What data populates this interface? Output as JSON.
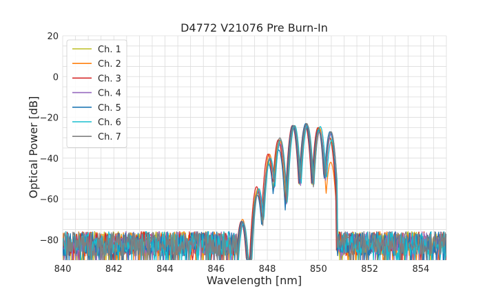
{
  "chart_data": {
    "type": "line",
    "title": "D4772 V21076 Pre Burn-In",
    "xlabel": "Wavelength [nm]",
    "ylabel": "Optical Power [dB]",
    "xlim": [
      840,
      855
    ],
    "ylim": [
      -90,
      20
    ],
    "xticks": [
      840,
      842,
      844,
      846,
      848,
      850,
      852,
      854
    ],
    "yticks": [
      20,
      0,
      -20,
      -40,
      -60,
      -80
    ],
    "xtick_labels": [
      "840",
      "842",
      "844",
      "846",
      "848",
      "850",
      "852",
      "854"
    ],
    "ytick_labels": [
      "20",
      "0",
      "−20",
      "−40",
      "−60",
      "−80"
    ],
    "minor_x_step": 0.5,
    "minor_y_step": 5,
    "grid": true,
    "legend_position": "upper-left",
    "noise_floor": {
      "level": -82,
      "spread": 6,
      "drop_to": -90,
      "left_end": 846.8,
      "right_start": 850.7
    },
    "series": [
      {
        "name": "Ch. 1",
        "color": "#bcbd22",
        "shift": 0.0,
        "lobes": [
          [
            846.55,
            -67
          ],
          [
            847.0,
            -71
          ],
          [
            847.6,
            -56
          ],
          [
            848.05,
            -42
          ],
          [
            848.45,
            -32
          ],
          [
            849.0,
            -24
          ],
          [
            849.5,
            -23.5
          ],
          [
            850.0,
            -25
          ],
          [
            850.45,
            -30
          ]
        ]
      },
      {
        "name": "Ch. 2",
        "color": "#ff7f0e",
        "shift": 0.03,
        "lobes": [
          [
            846.55,
            -66
          ],
          [
            847.0,
            -70
          ],
          [
            847.6,
            -55
          ],
          [
            848.05,
            -38
          ],
          [
            848.45,
            -31
          ],
          [
            849.0,
            -24
          ],
          [
            849.5,
            -23
          ],
          [
            850.0,
            -25
          ],
          [
            850.45,
            -42
          ]
        ]
      },
      {
        "name": "Ch. 3",
        "color": "#d62728",
        "shift": -0.02,
        "lobes": [
          [
            846.55,
            -67
          ],
          [
            847.0,
            -71
          ],
          [
            847.6,
            -54
          ],
          [
            848.05,
            -38
          ],
          [
            848.45,
            -31
          ],
          [
            849.0,
            -24
          ],
          [
            849.5,
            -24
          ],
          [
            850.0,
            -25
          ],
          [
            850.45,
            -30
          ]
        ]
      },
      {
        "name": "Ch. 4",
        "color": "#9467bd",
        "shift": 0.05,
        "lobes": [
          [
            846.55,
            -68
          ],
          [
            847.0,
            -72
          ],
          [
            847.6,
            -56
          ],
          [
            848.05,
            -40
          ],
          [
            848.45,
            -33
          ],
          [
            849.0,
            -25
          ],
          [
            849.5,
            -24
          ],
          [
            850.0,
            -27
          ],
          [
            850.45,
            -28
          ]
        ]
      },
      {
        "name": "Ch. 5",
        "color": "#1f77b4",
        "shift": 0.0,
        "lobes": [
          [
            846.55,
            -67
          ],
          [
            847.0,
            -71
          ],
          [
            847.6,
            -58
          ],
          [
            848.05,
            -43
          ],
          [
            848.45,
            -36
          ],
          [
            849.0,
            -24
          ],
          [
            849.5,
            -23
          ],
          [
            850.0,
            -26
          ],
          [
            850.45,
            -27
          ]
        ]
      },
      {
        "name": "Ch. 6",
        "color": "#17becf",
        "shift": 0.07,
        "lobes": [
          [
            846.55,
            -68
          ],
          [
            847.0,
            -72
          ],
          [
            847.6,
            -55
          ],
          [
            848.05,
            -40
          ],
          [
            848.45,
            -31
          ],
          [
            849.0,
            -24
          ],
          [
            849.5,
            -24
          ],
          [
            850.0,
            -24.5
          ],
          [
            850.45,
            -31
          ]
        ]
      },
      {
        "name": "Ch. 7",
        "color": "#7f7f7f",
        "shift": 0.04,
        "lobes": [
          [
            846.55,
            -67
          ],
          [
            847.0,
            -71
          ],
          [
            847.6,
            -57
          ],
          [
            848.05,
            -40
          ],
          [
            848.45,
            -30
          ],
          [
            849.0,
            -24
          ],
          [
            849.5,
            -23
          ],
          [
            850.0,
            -27
          ],
          [
            850.45,
            -27
          ]
        ]
      }
    ]
  }
}
